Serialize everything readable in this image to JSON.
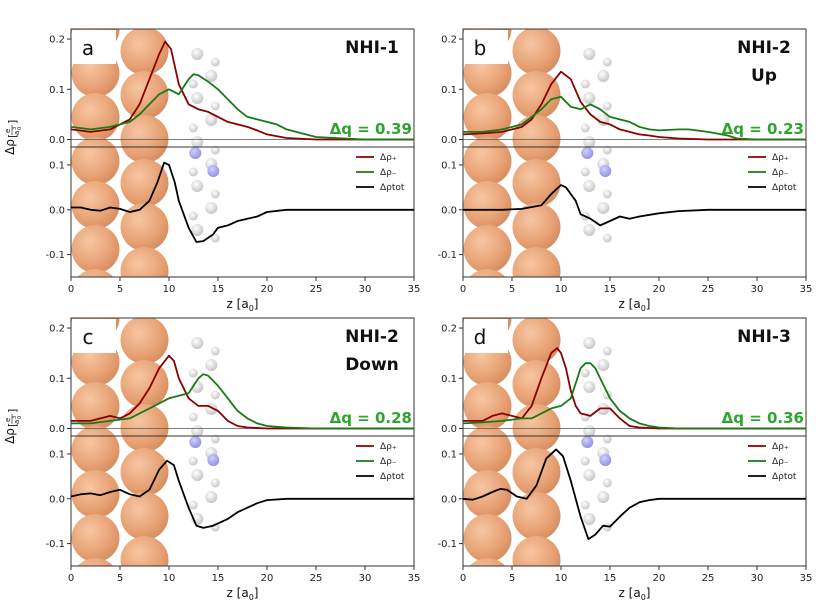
{
  "chart_data": [
    {
      "type": "line",
      "panel_label": "a",
      "title_lines": [
        "NHI-1"
      ],
      "delta_q": "Δq = 0.39",
      "x_ticks": [
        "0",
        "5",
        "10",
        "15",
        "20",
        "25",
        "30",
        "35"
      ],
      "top_y_ticks": [
        "0.2",
        "0.1",
        "0.0"
      ],
      "bottom_y_ticks": [
        "0.1",
        "0.0",
        "-0.1"
      ],
      "xlim": [
        0,
        35
      ],
      "top_ylim": [
        -0.015,
        0.22
      ],
      "bottom_ylim": [
        -0.15,
        0.14
      ],
      "series_top": [
        {
          "name": "Δρ₊",
          "color": "#8b0000",
          "x": [
            0,
            2,
            4,
            6,
            7,
            8,
            9,
            9.6,
            10.2,
            11,
            12,
            13,
            14,
            15,
            16,
            17,
            18,
            19,
            20,
            22,
            25,
            30,
            35
          ],
          "y": [
            0.02,
            0.015,
            0.02,
            0.04,
            0.07,
            0.12,
            0.17,
            0.195,
            0.18,
            0.11,
            0.07,
            0.06,
            0.055,
            0.045,
            0.035,
            0.03,
            0.025,
            0.018,
            0.01,
            0.003,
            0,
            0,
            0
          ]
        },
        {
          "name": "Δρ₋",
          "color": "#1a7a1a",
          "x": [
            0,
            2,
            4,
            6,
            7,
            8,
            9,
            10,
            11,
            12,
            12.5,
            13,
            14,
            15,
            16,
            17,
            18,
            19,
            20,
            21,
            22,
            25,
            30,
            35
          ],
          "y": [
            0.025,
            0.02,
            0.025,
            0.035,
            0.05,
            0.07,
            0.09,
            0.1,
            0.09,
            0.12,
            0.13,
            0.128,
            0.115,
            0.1,
            0.08,
            0.06,
            0.045,
            0.04,
            0.035,
            0.03,
            0.02,
            0.005,
            0,
            0
          ]
        }
      ],
      "series_bottom": [
        {
          "name": "Δρtot",
          "color": "#000000",
          "x": [
            0,
            1,
            2,
            3,
            4,
            5,
            6,
            7,
            8,
            8.8,
            9.5,
            10,
            10.6,
            11,
            12,
            12.8,
            13.5,
            14.5,
            15,
            16,
            17,
            18,
            19,
            20,
            22,
            25,
            30,
            35
          ],
          "y": [
            0.005,
            0.005,
            0,
            -0.002,
            0.005,
            0.002,
            -0.005,
            0,
            0.02,
            0.06,
            0.105,
            0.1,
            0.06,
            0.02,
            -0.04,
            -0.072,
            -0.07,
            -0.055,
            -0.04,
            -0.035,
            -0.025,
            -0.02,
            -0.015,
            -0.005,
            0,
            0,
            0,
            0
          ]
        }
      ]
    },
    {
      "type": "line",
      "panel_label": "b",
      "title_lines": [
        "NHI-2",
        "Up"
      ],
      "delta_q": "Δq = 0.23",
      "x_ticks": [
        "0",
        "5",
        "10",
        "15",
        "20",
        "25",
        "30",
        "35"
      ],
      "top_y_ticks": [
        "0.2",
        "0.1",
        "0.0"
      ],
      "bottom_y_ticks": [
        "0.1",
        "0.0",
        "-0.1"
      ],
      "xlim": [
        0,
        35
      ],
      "top_ylim": [
        -0.015,
        0.22
      ],
      "bottom_ylim": [
        -0.15,
        0.14
      ],
      "series_top": [
        {
          "name": "Δρ₊",
          "color": "#8b0000",
          "x": [
            0,
            2,
            4,
            6,
            7,
            8,
            9,
            10,
            11,
            12,
            13,
            14,
            15,
            16,
            17,
            18,
            19,
            20,
            22,
            25,
            30,
            35
          ],
          "y": [
            0.01,
            0.012,
            0.015,
            0.025,
            0.04,
            0.07,
            0.11,
            0.135,
            0.12,
            0.075,
            0.05,
            0.035,
            0.03,
            0.02,
            0.015,
            0.01,
            0.008,
            0.005,
            0.002,
            0,
            0,
            0
          ]
        },
        {
          "name": "Δρ₋",
          "color": "#1a7a1a",
          "x": [
            0,
            2,
            4,
            6,
            7,
            8,
            9,
            10,
            11,
            12,
            13,
            14,
            15,
            16,
            17,
            18,
            19,
            20,
            22,
            23,
            25,
            27,
            28,
            30,
            35
          ],
          "y": [
            0.015,
            0.015,
            0.02,
            0.03,
            0.045,
            0.06,
            0.08,
            0.085,
            0.065,
            0.06,
            0.07,
            0.06,
            0.045,
            0.04,
            0.035,
            0.025,
            0.02,
            0.018,
            0.02,
            0.02,
            0.015,
            0.008,
            0.002,
            0,
            0
          ]
        }
      ],
      "series_bottom": [
        {
          "name": "Δρtot",
          "color": "#000000",
          "x": [
            0,
            2,
            4,
            6,
            8,
            9,
            10,
            10.5,
            11.5,
            12,
            13,
            14,
            15,
            16,
            17,
            18,
            20,
            22,
            25,
            30,
            35
          ],
          "y": [
            0,
            0,
            0,
            0.002,
            0.01,
            0.035,
            0.055,
            0.05,
            0.02,
            -0.01,
            -0.02,
            -0.035,
            -0.025,
            -0.015,
            -0.02,
            -0.015,
            -0.008,
            -0.003,
            0,
            0,
            0
          ]
        }
      ]
    },
    {
      "type": "line",
      "panel_label": "c",
      "title_lines": [
        "NHI-2",
        "Down"
      ],
      "delta_q": "Δq = 0.28",
      "x_ticks": [
        "0",
        "5",
        "10",
        "15",
        "20",
        "25",
        "30",
        "35"
      ],
      "top_y_ticks": [
        "0.2",
        "0.1",
        "0.0"
      ],
      "bottom_y_ticks": [
        "0.1",
        "0.0",
        "-0.1"
      ],
      "xlim": [
        0,
        35
      ],
      "top_ylim": [
        -0.015,
        0.22
      ],
      "bottom_ylim": [
        -0.15,
        0.14
      ],
      "series_top": [
        {
          "name": "Δρ₊",
          "color": "#8b0000",
          "x": [
            0,
            2,
            3,
            4,
            5,
            6,
            7,
            8,
            9,
            10,
            10.5,
            11,
            12,
            13,
            14,
            15,
            16,
            17,
            18,
            20,
            25,
            30,
            35
          ],
          "y": [
            0.015,
            0.015,
            0.02,
            0.025,
            0.02,
            0.03,
            0.05,
            0.08,
            0.12,
            0.145,
            0.135,
            0.1,
            0.06,
            0.045,
            0.045,
            0.035,
            0.015,
            0.005,
            0.002,
            0,
            0,
            0,
            0
          ]
        },
        {
          "name": "Δρ₋",
          "color": "#1a7a1a",
          "x": [
            0,
            2,
            4,
            6,
            7,
            8,
            9,
            10,
            11,
            12,
            13,
            13.5,
            14,
            15,
            16,
            17,
            18,
            19,
            20,
            22,
            25,
            30,
            35
          ],
          "y": [
            0.01,
            0.01,
            0.015,
            0.02,
            0.03,
            0.04,
            0.05,
            0.06,
            0.065,
            0.07,
            0.1,
            0.108,
            0.105,
            0.085,
            0.06,
            0.035,
            0.02,
            0.01,
            0.005,
            0.002,
            0,
            0,
            0
          ]
        }
      ],
      "series_bottom": [
        {
          "name": "Δρtot",
          "color": "#000000",
          "x": [
            0,
            1,
            2,
            3,
            4,
            5,
            6,
            7,
            8,
            9,
            9.8,
            10.5,
            11,
            12,
            12.8,
            13.5,
            14.5,
            15,
            16,
            17,
            18,
            19,
            20,
            22,
            25,
            30,
            35
          ],
          "y": [
            0.005,
            0.01,
            0.012,
            0.008,
            0.015,
            0.02,
            0.01,
            0.005,
            0.02,
            0.065,
            0.085,
            0.075,
            0.04,
            -0.02,
            -0.06,
            -0.065,
            -0.06,
            -0.055,
            -0.045,
            -0.03,
            -0.02,
            -0.01,
            -0.003,
            0,
            0,
            0,
            0
          ]
        }
      ]
    },
    {
      "type": "line",
      "panel_label": "d",
      "title_lines": [
        "NHI-3"
      ],
      "delta_q": "Δq = 0.36",
      "x_ticks": [
        "0",
        "5",
        "10",
        "15",
        "20",
        "25",
        "30",
        "35"
      ],
      "top_y_ticks": [
        "0.2",
        "0.1",
        "0.0"
      ],
      "bottom_y_ticks": [
        "0.1",
        "0.0",
        "-0.1"
      ],
      "xlim": [
        0,
        35
      ],
      "top_ylim": [
        -0.015,
        0.22
      ],
      "bottom_ylim": [
        -0.15,
        0.14
      ],
      "series_top": [
        {
          "name": "Δρ₊",
          "color": "#8b0000",
          "x": [
            0,
            2,
            3,
            4,
            5,
            6,
            7,
            8,
            9,
            9.6,
            10,
            10.5,
            11,
            11.5,
            12,
            13,
            14,
            15,
            16,
            17,
            18,
            20,
            25,
            30,
            35
          ],
          "y": [
            0.015,
            0.015,
            0.025,
            0.03,
            0.025,
            0.02,
            0.045,
            0.1,
            0.15,
            0.16,
            0.15,
            0.12,
            0.075,
            0.045,
            0.03,
            0.025,
            0.04,
            0.04,
            0.02,
            0.005,
            0.002,
            0,
            0,
            0,
            0
          ]
        },
        {
          "name": "Δρ₋",
          "color": "#1a7a1a",
          "x": [
            0,
            2,
            4,
            6,
            7,
            8,
            9,
            10,
            11,
            12,
            12.5,
            13,
            13.5,
            14,
            15,
            16,
            17,
            18,
            19,
            20,
            22,
            25,
            30,
            35
          ],
          "y": [
            0.01,
            0.012,
            0.015,
            0.02,
            0.02,
            0.03,
            0.04,
            0.045,
            0.06,
            0.12,
            0.13,
            0.13,
            0.12,
            0.1,
            0.06,
            0.035,
            0.02,
            0.01,
            0.005,
            0.002,
            0,
            0,
            0,
            0
          ]
        }
      ],
      "series_bottom": [
        {
          "name": "Δρtot",
          "color": "#000000",
          "x": [
            0,
            1,
            2,
            3,
            3.8,
            4.5,
            5.5,
            6.5,
            7.5,
            8.5,
            9.5,
            10.2,
            11,
            12,
            12.8,
            13.5,
            14.3,
            15,
            16,
            17,
            18,
            19,
            20,
            22,
            25,
            30,
            35
          ],
          "y": [
            0,
            -0.002,
            0.005,
            0.015,
            0.022,
            0.02,
            0.005,
            0,
            0.03,
            0.09,
            0.11,
            0.095,
            0.04,
            -0.04,
            -0.09,
            -0.08,
            -0.06,
            -0.062,
            -0.04,
            -0.02,
            -0.008,
            -0.003,
            0,
            0,
            0,
            0,
            0
          ]
        }
      ]
    }
  ],
  "axis_labels": {
    "y_label": "Δρ",
    "y_unit_numerator": "e",
    "y_unit_denominator_base": "a",
    "y_unit_denominator_sub": "0",
    "y_unit_denominator_sup": "3",
    "x_label": "z [a",
    "x_label_sub": "0",
    "x_label_end": "]"
  },
  "colors": {
    "dq_green": "#2ca52c",
    "atom_fill": "#e08a4f",
    "mol_gray": "#cfcfcf",
    "mol_blue": "#8a8ae8",
    "axis": "#333333"
  }
}
